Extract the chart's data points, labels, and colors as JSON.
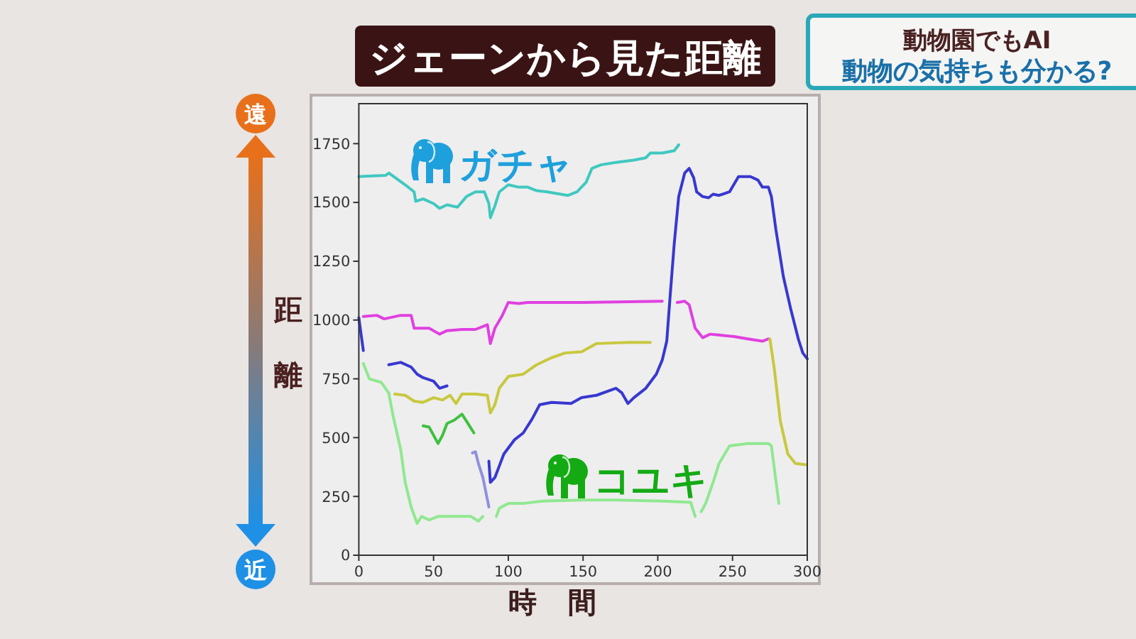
{
  "chart_data": {
    "type": "line",
    "title": "ジェーンから見た距離",
    "xlabel": "時間",
    "ylabel": "距離",
    "annotations": [
      "遠",
      "近",
      "動物園でもAI",
      "動物の気持ちも分かる?"
    ],
    "xlim": [
      0,
      300
    ],
    "ylim": [
      0,
      1920
    ],
    "xticks": [
      0,
      50,
      100,
      150,
      200,
      250,
      300
    ],
    "yticks": [
      0,
      250,
      500,
      750,
      1000,
      1250,
      1500,
      1750
    ],
    "series": [
      {
        "name": "ガチャ",
        "color": "#40c8c0",
        "x": [
          0,
          18,
          20,
          31,
          37,
          38,
          43,
          50,
          54,
          59,
          66,
          72,
          78,
          84,
          87,
          88,
          91,
          94,
          100,
          107,
          113,
          119,
          126,
          135,
          140,
          146,
          152,
          156,
          162,
          172,
          184,
          192,
          195,
          203,
          211,
          214
        ],
        "values": [
          1610,
          1615,
          1625,
          1575,
          1545,
          1505,
          1515,
          1495,
          1475,
          1490,
          1480,
          1525,
          1545,
          1545,
          1495,
          1435,
          1485,
          1545,
          1575,
          1565,
          1565,
          1550,
          1545,
          1535,
          1530,
          1545,
          1585,
          1645,
          1660,
          1670,
          1680,
          1690,
          1710,
          1710,
          1720,
          1745
        ]
      },
      {
        "color": "#e040e0",
        "x": [
          3,
          12,
          17,
          28,
          35,
          37,
          47,
          54,
          59,
          69,
          78,
          86,
          88,
          91,
          96,
          100,
          107,
          113,
          150,
          203,
          208,
          213,
          218,
          221,
          225,
          230,
          235,
          251,
          260,
          270,
          274
        ],
        "values": [
          1015,
          1020,
          1005,
          1020,
          1020,
          965,
          965,
          940,
          955,
          960,
          960,
          980,
          900,
          965,
          1020,
          1075,
          1070,
          1075,
          1075,
          1080,
          null,
          1075,
          1080,
          1065,
          965,
          925,
          940,
          930,
          920,
          910,
          920
        ]
      },
      {
        "color": "#3838d0",
        "x": [
          0,
          3,
          10,
          20,
          28,
          35,
          39,
          43,
          50,
          54,
          59,
          75,
          87,
          88,
          91,
          94,
          97,
          104,
          110,
          116,
          121,
          129,
          142,
          149,
          159,
          172,
          176,
          180,
          184,
          192,
          199,
          203,
          206,
          208,
          211,
          214,
          218,
          221,
          224,
          226,
          230,
          234,
          237,
          241,
          248,
          254,
          262,
          267,
          270,
          274,
          276,
          279,
          284,
          289,
          294,
          297,
          300
        ],
        "values": [
          1010,
          870,
          null,
          810,
          820,
          800,
          770,
          755,
          740,
          710,
          720,
          null,
          400,
          310,
          330,
          380,
          430,
          490,
          520,
          580,
          640,
          650,
          645,
          670,
          680,
          710,
          690,
          645,
          670,
          710,
          770,
          830,
          910,
          1080,
          1325,
          1525,
          1625,
          1645,
          1605,
          1545,
          1525,
          1520,
          1535,
          1530,
          1545,
          1610,
          1610,
          1595,
          1565,
          1565,
          1525,
          1385,
          1185,
          1045,
          920,
          860,
          835
        ]
      },
      {
        "color": "#c8c840",
        "x": [
          24,
          31,
          37,
          43,
          50,
          56,
          61,
          65,
          69,
          78,
          86,
          88,
          91,
          94,
          100,
          110,
          119,
          129,
          138,
          149,
          159,
          181,
          195,
          235,
          275,
          278,
          282,
          287,
          292,
          296,
          299
        ],
        "values": [
          685,
          680,
          655,
          650,
          670,
          660,
          680,
          645,
          685,
          685,
          680,
          605,
          640,
          710,
          760,
          770,
          810,
          840,
          860,
          865,
          900,
          905,
          905,
          null,
          920,
          790,
          570,
          430,
          390,
          387,
          385
        ]
      },
      {
        "color": "#40c040",
        "x": [
          43,
          47,
          53,
          56,
          59,
          64,
          69,
          72,
          77
        ],
        "values": [
          550,
          545,
          475,
          510,
          560,
          575,
          600,
          570,
          520
        ]
      },
      {
        "color": "#9090e0",
        "x": [
          76,
          78,
          80,
          83,
          87
        ],
        "values": [
          435,
          440,
          390,
          330,
          205
        ]
      },
      {
        "name": "コユキ",
        "color": "#90e890",
        "x": [
          3,
          7,
          15,
          20,
          23,
          28,
          31,
          35,
          39,
          42,
          47,
          53,
          66,
          75,
          80,
          83,
          88,
          92,
          94,
          100,
          110,
          123,
          149,
          172,
          203,
          222,
          225,
          227,
          229,
          232,
          237,
          241,
          248,
          260,
          274,
          276,
          281
        ],
        "values": [
          815,
          750,
          735,
          690,
          590,
          450,
          310,
          205,
          135,
          165,
          150,
          165,
          165,
          165,
          145,
          165,
          null,
          165,
          200,
          220,
          220,
          230,
          235,
          235,
          230,
          225,
          165,
          null,
          185,
          220,
          310,
          390,
          465,
          475,
          475,
          465,
          220
        ]
      }
    ]
  }
}
